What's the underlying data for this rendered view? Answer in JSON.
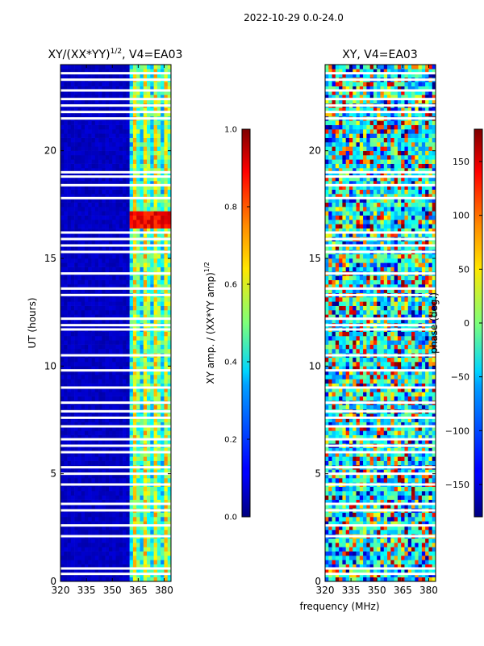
{
  "suptitle": "2022-10-29 0.0-24.0",
  "xlabel": "frequency (MHz)",
  "chart_data": [
    {
      "type": "heatmap",
      "title_main": "XY/(XX*YY)",
      "title_exp": "1/2",
      "title_tail": ", V4=EA03",
      "ylabel": "UT (hours)",
      "xlim": [
        320,
        384
      ],
      "ylim": [
        0,
        24
      ],
      "xticks": [
        320,
        335,
        350,
        365,
        380
      ],
      "yticks": [
        0,
        5,
        10,
        15,
        20
      ],
      "colorbar": {
        "label_main": "XY amp. / (XX*YY amp)",
        "label_exp": "1/2",
        "range": [
          0.0,
          1.0
        ],
        "ticks": [
          "0.0",
          "0.2",
          "0.4",
          "0.6",
          "0.8",
          "1.0"
        ]
      },
      "description": "Low normalized amplitude (~0.05) below 361 MHz; striped elevated values (0.3-0.7) between 361-381 MHz; peak ~0.9 near 16.3-17.3 UT."
    },
    {
      "type": "heatmap",
      "title": "XY, V4=EA03",
      "xlim": [
        320,
        384
      ],
      "ylim": [
        0,
        24
      ],
      "xticks": [
        320,
        335,
        350,
        365,
        380
      ],
      "yticks": [
        0,
        5,
        10,
        15,
        20
      ],
      "colorbar": {
        "label": "phase (deg.)",
        "range": [
          -180,
          180
        ],
        "ticks": [
          "−150",
          "−100",
          "−50",
          "0",
          "50",
          "100",
          "150"
        ]
      },
      "description": "Noisy phase values spanning the full -180 to 180 degree range across all frequencies and times."
    }
  ]
}
